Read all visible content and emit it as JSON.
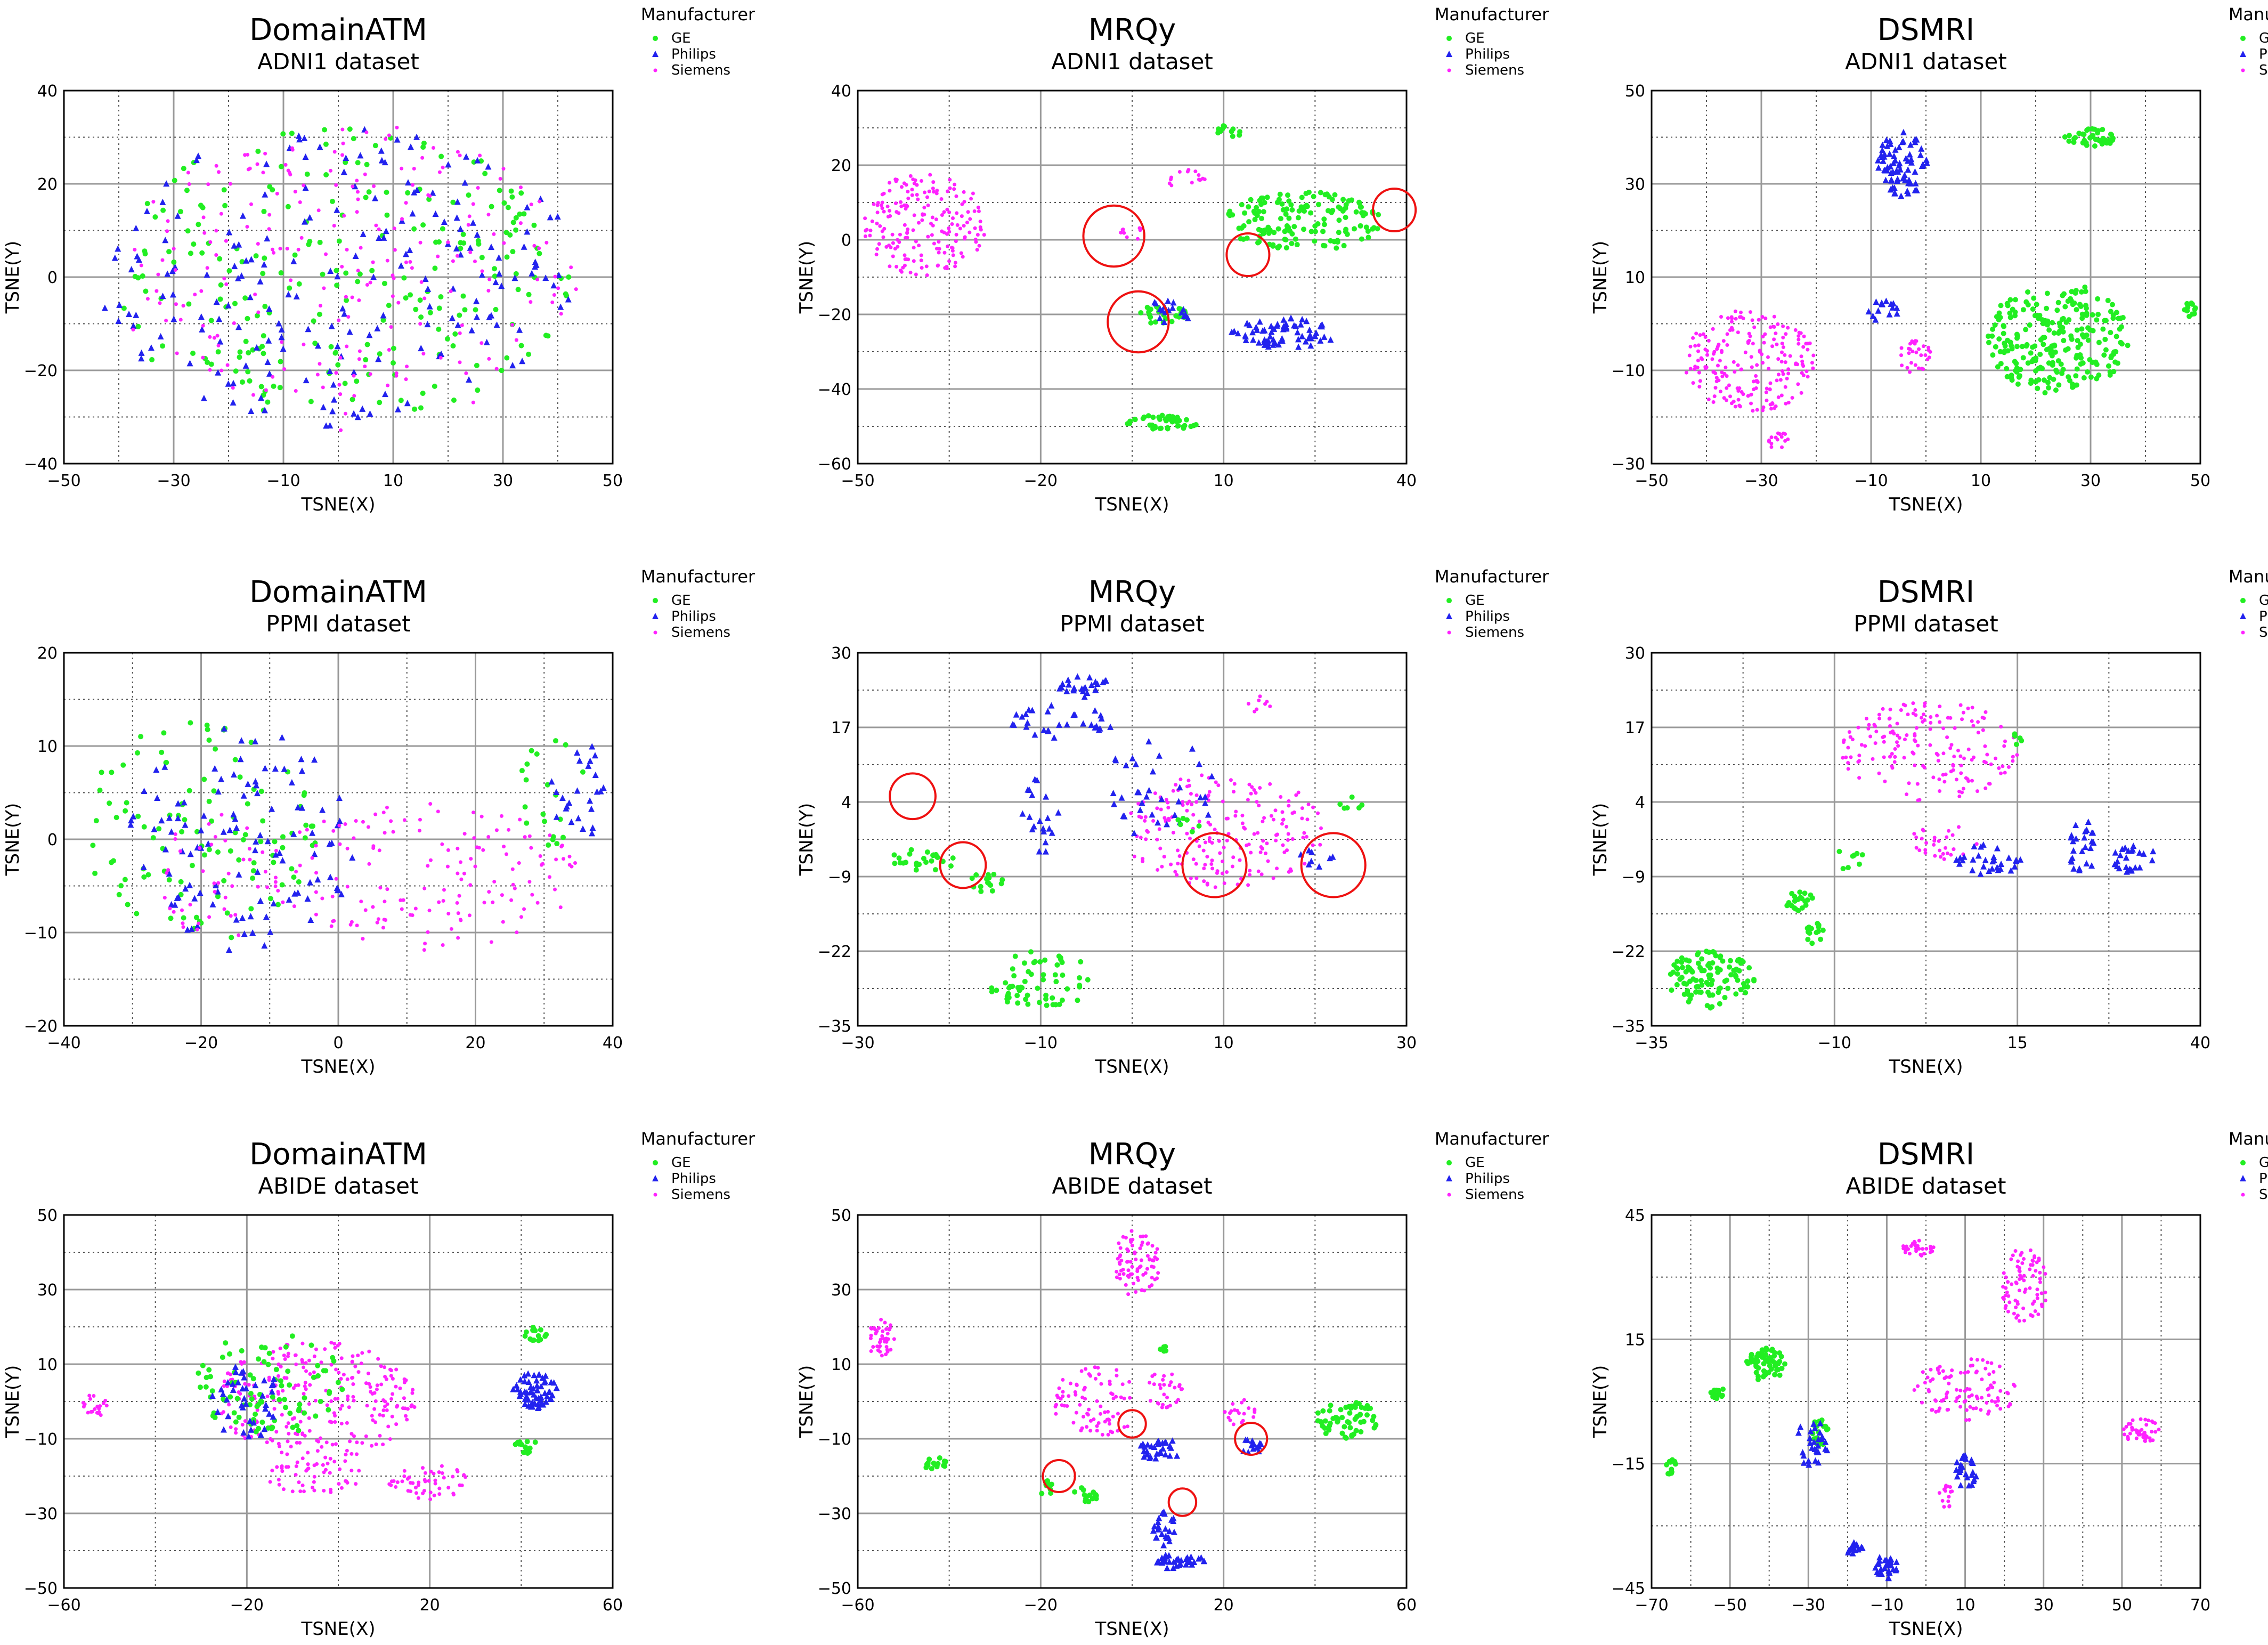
{
  "colors": {
    "GE": "#22ee22",
    "Philips": "#2222ee",
    "Siemens": "#ff22ff",
    "circle": "#ee1111",
    "grid": "#999999"
  },
  "chart_data": [
    {
      "type": "scatter",
      "title": "DomainATM",
      "subtitle": "ADNI1 dataset",
      "xlabel": "TSNE(X)",
      "ylabel": "TSNE(Y)",
      "xlim": [
        -50,
        50
      ],
      "ylim": [
        -40,
        40
      ],
      "xticks": [
        -50,
        -30,
        -10,
        10,
        30,
        50
      ],
      "yticks": [
        -40,
        -20,
        0,
        20,
        40
      ],
      "legend_title": "Manufacturer",
      "legend": [
        "GE",
        "Philips",
        "Siemens"
      ],
      "grid": true,
      "clusters": [
        {
          "series": "GE",
          "cx": 0,
          "cy": 0,
          "rx": 42,
          "ry": 32,
          "n": 230
        },
        {
          "series": "Philips",
          "cx": 0,
          "cy": 0,
          "rx": 44,
          "ry": 32,
          "n": 200
        },
        {
          "series": "Siemens",
          "cx": 2,
          "cy": 0,
          "rx": 42,
          "ry": 33,
          "n": 220
        }
      ],
      "circles": []
    },
    {
      "type": "scatter",
      "title": "MRQy",
      "subtitle": "ADNI1 dataset",
      "xlabel": "TSNE(X)",
      "ylabel": "TSNE(Y)",
      "xlim": [
        -50,
        40
      ],
      "ylim": [
        -60,
        40
      ],
      "xticks": [
        -50,
        -20,
        10,
        40
      ],
      "yticks": [
        -60,
        -40,
        -20,
        0,
        20,
        40
      ],
      "legend_title": "Manufacturer",
      "legend": [
        "GE",
        "Philips",
        "Siemens"
      ],
      "grid": true,
      "clusters": [
        {
          "series": "Siemens",
          "cx": -39,
          "cy": 4,
          "rx": 10,
          "ry": 14,
          "n": 190
        },
        {
          "series": "Siemens",
          "cx": 4,
          "cy": 16,
          "rx": 3,
          "ry": 3,
          "n": 15
        },
        {
          "series": "Siemens",
          "cx": -5,
          "cy": 2,
          "rx": 2,
          "ry": 2,
          "n": 10
        },
        {
          "series": "GE",
          "cx": 23,
          "cy": 5,
          "rx": 13,
          "ry": 8,
          "n": 150
        },
        {
          "series": "GE",
          "cx": 11,
          "cy": 29,
          "rx": 2,
          "ry": 2,
          "n": 12
        },
        {
          "series": "GE",
          "cx": 0,
          "cy": -49,
          "rx": 6,
          "ry": 2,
          "n": 45
        },
        {
          "series": "GE",
          "cx": 0,
          "cy": -20,
          "rx": 4,
          "ry": 3,
          "n": 25
        },
        {
          "series": "Philips",
          "cx": 20,
          "cy": -25,
          "rx": 9,
          "ry": 4,
          "n": 70
        },
        {
          "series": "Philips",
          "cx": 1,
          "cy": -20,
          "rx": 4,
          "ry": 4,
          "n": 18
        }
      ],
      "circles": [
        {
          "x": -8,
          "y": 1,
          "r": 5
        },
        {
          "x": -4,
          "y": -22,
          "r": 5
        },
        {
          "x": 14,
          "y": -4,
          "r": 3.5
        },
        {
          "x": 38,
          "y": 8,
          "r": 3.5
        }
      ]
    },
    {
      "type": "scatter",
      "title": "DSMRI",
      "subtitle": "ADNI1 dataset",
      "xlabel": "TSNE(X)",
      "ylabel": "TSNE(Y)",
      "xlim": [
        -50,
        50
      ],
      "ylim": [
        -30,
        50
      ],
      "xticks": [
        -50,
        -30,
        -10,
        10,
        30,
        50
      ],
      "yticks": [
        -30,
        -10,
        10,
        30,
        50
      ],
      "legend_title": "Manufacturer",
      "legend": [
        "GE",
        "Philips",
        "Siemens"
      ],
      "grid": true,
      "clusters": [
        {
          "series": "Siemens",
          "cx": -32,
          "cy": -8,
          "rx": 12,
          "ry": 11,
          "n": 210
        },
        {
          "series": "Siemens",
          "cx": -2,
          "cy": -7,
          "rx": 3,
          "ry": 4,
          "n": 30
        },
        {
          "series": "Siemens",
          "cx": -27,
          "cy": -25,
          "rx": 2,
          "ry": 2,
          "n": 15
        },
        {
          "series": "GE",
          "cx": 24,
          "cy": -3,
          "rx": 13,
          "ry": 12,
          "n": 250
        },
        {
          "series": "GE",
          "cx": 30,
          "cy": 40,
          "rx": 5,
          "ry": 2,
          "n": 40
        },
        {
          "series": "GE",
          "cx": 48,
          "cy": 3,
          "rx": 2,
          "ry": 1.5,
          "n": 12
        },
        {
          "series": "Philips",
          "cx": -4,
          "cy": 34,
          "rx": 5,
          "ry": 7,
          "n": 75
        },
        {
          "series": "Philips",
          "cx": -8,
          "cy": 3,
          "rx": 3,
          "ry": 3,
          "n": 15
        }
      ],
      "circles": []
    },
    {
      "type": "scatter",
      "title": "DomainATM",
      "subtitle": "PPMI dataset",
      "xlabel": "TSNE(X)",
      "ylabel": "TSNE(Y)",
      "xlim": [
        -40,
        40
      ],
      "ylim": [
        -20,
        20
      ],
      "xticks": [
        -40,
        -20,
        0,
        20,
        40
      ],
      "yticks": [
        -20,
        -10,
        0,
        10,
        20
      ],
      "legend_title": "Manufacturer",
      "legend": [
        "GE",
        "Philips",
        "Siemens"
      ],
      "grid": true,
      "clusters": [
        {
          "series": "GE",
          "cx": -20,
          "cy": 1,
          "rx": 17,
          "ry": 12,
          "n": 110
        },
        {
          "series": "GE",
          "cx": 31,
          "cy": 5,
          "rx": 5,
          "ry": 6,
          "n": 20
        },
        {
          "series": "Philips",
          "cx": -14,
          "cy": 0,
          "rx": 17,
          "ry": 12,
          "n": 110
        },
        {
          "series": "Philips",
          "cx": 35,
          "cy": 5,
          "rx": 4,
          "ry": 6,
          "n": 25
        },
        {
          "series": "Siemens",
          "cx": 12,
          "cy": -4,
          "rx": 23,
          "ry": 8,
          "n": 150
        },
        {
          "series": "Siemens",
          "cx": -18,
          "cy": -4,
          "rx": 8,
          "ry": 7,
          "n": 40
        }
      ],
      "circles": []
    },
    {
      "type": "scatter",
      "title": "MRQy",
      "subtitle": "PPMI dataset",
      "xlabel": "TSNE(X)",
      "ylabel": "TSNE(Y)",
      "xlim": [
        -30,
        30
      ],
      "ylim": [
        -35,
        30
      ],
      "xticks": [
        -30,
        -10,
        10,
        30
      ],
      "yticks": [
        -35,
        -22,
        -9,
        4,
        17,
        30
      ],
      "legend_title": "Manufacturer",
      "legend": [
        "GE",
        "Philips",
        "Siemens"
      ],
      "grid": true,
      "clusters": [
        {
          "series": "Siemens",
          "cx": 10,
          "cy": -1,
          "rx": 11,
          "ry": 10,
          "n": 200
        },
        {
          "series": "Siemens",
          "cx": 14,
          "cy": 21,
          "rx": 1.5,
          "ry": 1.5,
          "n": 8
        },
        {
          "series": "Philips",
          "cx": -5,
          "cy": 24,
          "rx": 3,
          "ry": 2,
          "n": 25
        },
        {
          "series": "Philips",
          "cx": -8,
          "cy": 18,
          "rx": 6,
          "ry": 3,
          "n": 30
        },
        {
          "series": "Philips",
          "cx": -10,
          "cy": 2,
          "rx": 2,
          "ry": 8,
          "n": 20
        },
        {
          "series": "Philips",
          "cx": 3,
          "cy": 6,
          "rx": 6,
          "ry": 10,
          "n": 35
        },
        {
          "series": "Philips",
          "cx": 20,
          "cy": -6,
          "rx": 2,
          "ry": 2,
          "n": 8
        },
        {
          "series": "GE",
          "cx": -23,
          "cy": -6,
          "rx": 4,
          "ry": 2,
          "n": 25
        },
        {
          "series": "GE",
          "cx": -16,
          "cy": -10,
          "rx": 2,
          "ry": 2,
          "n": 15
        },
        {
          "series": "GE",
          "cx": -10,
          "cy": -27,
          "rx": 6,
          "ry": 5,
          "n": 60
        },
        {
          "series": "GE",
          "cx": 6,
          "cy": 0,
          "rx": 1.5,
          "ry": 1.5,
          "n": 6
        },
        {
          "series": "GE",
          "cx": 24,
          "cy": 4,
          "rx": 1.5,
          "ry": 1.5,
          "n": 6
        }
      ],
      "circles": [
        {
          "x": -24,
          "y": 5,
          "r": 2.5
        },
        {
          "x": -18.5,
          "y": -7,
          "r": 2.5
        },
        {
          "x": 9,
          "y": -7,
          "r": 3.5
        },
        {
          "x": 22,
          "y": -7,
          "r": 3.5
        }
      ]
    },
    {
      "type": "scatter",
      "title": "DSMRI",
      "subtitle": "PPMI dataset",
      "xlabel": "TSNE(X)",
      "ylabel": "TSNE(Y)",
      "xlim": [
        -35,
        40
      ],
      "ylim": [
        -35,
        30
      ],
      "xticks": [
        -35,
        -10,
        15,
        40
      ],
      "yticks": [
        -35,
        -22,
        -9,
        4,
        17,
        30
      ],
      "legend_title": "Manufacturer",
      "legend": [
        "GE",
        "Philips",
        "Siemens"
      ],
      "grid": true,
      "clusters": [
        {
          "series": "Siemens",
          "cx": 3,
          "cy": 13,
          "rx": 12,
          "ry": 9,
          "n": 170
        },
        {
          "series": "Siemens",
          "cx": 5,
          "cy": -3,
          "rx": 5,
          "ry": 3,
          "n": 30
        },
        {
          "series": "GE",
          "cx": -27,
          "cy": -27,
          "rx": 6,
          "ry": 5,
          "n": 110
        },
        {
          "series": "GE",
          "cx": -15,
          "cy": -13,
          "rx": 2,
          "ry": 2,
          "n": 20
        },
        {
          "series": "GE",
          "cx": -13,
          "cy": -19,
          "rx": 2,
          "ry": 2,
          "n": 15
        },
        {
          "series": "GE",
          "cx": -8,
          "cy": -6,
          "rx": 2,
          "ry": 2,
          "n": 8
        },
        {
          "series": "GE",
          "cx": 15,
          "cy": 15,
          "rx": 0.8,
          "ry": 1,
          "n": 5
        },
        {
          "series": "Philips",
          "cx": 11,
          "cy": -6,
          "rx": 5,
          "ry": 3,
          "n": 30
        },
        {
          "series": "Philips",
          "cx": 24,
          "cy": -4,
          "rx": 2,
          "ry": 5,
          "n": 25
        },
        {
          "series": "Philips",
          "cx": 31,
          "cy": -6,
          "rx": 3,
          "ry": 3,
          "n": 25
        }
      ],
      "circles": []
    },
    {
      "type": "scatter",
      "title": "DomainATM",
      "subtitle": "ABIDE dataset",
      "xlabel": "TSNE(X)",
      "ylabel": "TSNE(Y)",
      "xlim": [
        -60,
        60
      ],
      "ylim": [
        -50,
        50
      ],
      "xticks": [
        -60,
        -20,
        20,
        60
      ],
      "yticks": [
        -50,
        -30,
        -10,
        10,
        30,
        50
      ],
      "legend_title": "Manufacturer",
      "legend": [
        "GE",
        "Philips",
        "Siemens"
      ],
      "grid": true,
      "clusters": [
        {
          "series": "Siemens",
          "cx": -5,
          "cy": 0,
          "rx": 22,
          "ry": 16,
          "n": 260
        },
        {
          "series": "Siemens",
          "cx": 20,
          "cy": -22,
          "rx": 9,
          "ry": 5,
          "n": 50
        },
        {
          "series": "Siemens",
          "cx": -5,
          "cy": -20,
          "rx": 11,
          "ry": 5,
          "n": 50
        },
        {
          "series": "Siemens",
          "cx": -53,
          "cy": -1,
          "rx": 3,
          "ry": 3,
          "n": 20
        },
        {
          "series": "GE",
          "cx": -15,
          "cy": 5,
          "rx": 16,
          "ry": 14,
          "n": 90
        },
        {
          "series": "GE",
          "cx": 43,
          "cy": 18,
          "rx": 2.5,
          "ry": 2,
          "n": 15
        },
        {
          "series": "GE",
          "cx": 41,
          "cy": -12,
          "rx": 2.5,
          "ry": 2,
          "n": 15
        },
        {
          "series": "Philips",
          "cx": 43,
          "cy": 3,
          "rx": 5,
          "ry": 5,
          "n": 60
        },
        {
          "series": "Philips",
          "cx": -20,
          "cy": 0,
          "rx": 8,
          "ry": 10,
          "n": 40
        }
      ],
      "circles": []
    },
    {
      "type": "scatter",
      "title": "MRQy",
      "subtitle": "ABIDE dataset",
      "xlabel": "TSNE(X)",
      "ylabel": "TSNE(Y)",
      "xlim": [
        -60,
        60
      ],
      "ylim": [
        -50,
        50
      ],
      "xticks": [
        -60,
        -20,
        20,
        60
      ],
      "yticks": [
        -50,
        -30,
        -10,
        10,
        30,
        50
      ],
      "legend_title": "Manufacturer",
      "legend": [
        "GE",
        "Philips",
        "Siemens"
      ],
      "grid": true,
      "clusters": [
        {
          "series": "Siemens",
          "cx": -55,
          "cy": 17,
          "rx": 3,
          "ry": 5,
          "n": 40
        },
        {
          "series": "Siemens",
          "cx": 1,
          "cy": 37,
          "rx": 5,
          "ry": 9,
          "n": 80
        },
        {
          "series": "Siemens",
          "cx": -8,
          "cy": 0,
          "rx": 10,
          "ry": 10,
          "n": 80
        },
        {
          "series": "Siemens",
          "cx": 7,
          "cy": 3,
          "rx": 4,
          "ry": 5,
          "n": 30
        },
        {
          "series": "Siemens",
          "cx": 24,
          "cy": -3,
          "rx": 4,
          "ry": 4,
          "n": 20
        },
        {
          "series": "GE",
          "cx": -43,
          "cy": -17,
          "rx": 2.5,
          "ry": 2,
          "n": 15
        },
        {
          "series": "GE",
          "cx": -19,
          "cy": -23,
          "rx": 2,
          "ry": 2,
          "n": 10
        },
        {
          "series": "GE",
          "cx": -10,
          "cy": -25,
          "rx": 3,
          "ry": 2,
          "n": 15
        },
        {
          "series": "GE",
          "cx": 47,
          "cy": -5,
          "rx": 7,
          "ry": 5,
          "n": 60
        },
        {
          "series": "GE",
          "cx": 7,
          "cy": 14,
          "rx": 1.5,
          "ry": 1,
          "n": 6
        },
        {
          "series": "Philips",
          "cx": 6,
          "cy": -13,
          "rx": 5,
          "ry": 3,
          "n": 30
        },
        {
          "series": "Philips",
          "cx": 26,
          "cy": -12,
          "rx": 2.5,
          "ry": 2,
          "n": 15
        },
        {
          "series": "Philips",
          "cx": 7,
          "cy": -34,
          "rx": 2.5,
          "ry": 5,
          "n": 25
        },
        {
          "series": "Philips",
          "cx": 10,
          "cy": -43,
          "rx": 6,
          "ry": 2,
          "n": 35
        }
      ],
      "circles": [
        {
          "x": -16,
          "y": -20,
          "r": 3.5
        },
        {
          "x": 0,
          "y": -6,
          "r": 3
        },
        {
          "x": 26,
          "y": -10,
          "r": 3.5
        },
        {
          "x": 11,
          "y": -27,
          "r": 3
        }
      ]
    },
    {
      "type": "scatter",
      "title": "DSMRI",
      "subtitle": "ABIDE dataset",
      "xlabel": "TSNE(X)",
      "ylabel": "TSNE(Y)",
      "xlim": [
        -70,
        70
      ],
      "ylim": [
        -45,
        45
      ],
      "xticks": [
        -70,
        -50,
        -30,
        -10,
        10,
        30,
        50,
        70
      ],
      "yticks": [
        -45,
        -15,
        15,
        45
      ],
      "legend_title": "Manufacturer",
      "legend": [
        "GE",
        "Philips",
        "Siemens"
      ],
      "grid": true,
      "clusters": [
        {
          "series": "Siemens",
          "cx": 10,
          "cy": 3,
          "rx": 13,
          "ry": 8,
          "n": 100
        },
        {
          "series": "Siemens",
          "cx": 25,
          "cy": 28,
          "rx": 6,
          "ry": 9,
          "n": 80
        },
        {
          "series": "Siemens",
          "cx": 55,
          "cy": -7,
          "rx": 5,
          "ry": 3,
          "n": 45
        },
        {
          "series": "Siemens",
          "cx": -2,
          "cy": 37,
          "rx": 4,
          "ry": 2,
          "n": 30
        },
        {
          "series": "Siemens",
          "cx": 5,
          "cy": -23,
          "rx": 2,
          "ry": 3,
          "n": 15
        },
        {
          "series": "GE",
          "cx": -41,
          "cy": 9,
          "rx": 5,
          "ry": 4,
          "n": 60
        },
        {
          "series": "GE",
          "cx": -53,
          "cy": 2,
          "rx": 2,
          "ry": 1.5,
          "n": 15
        },
        {
          "series": "GE",
          "cx": -65,
          "cy": -16,
          "rx": 1.5,
          "ry": 2,
          "n": 15
        },
        {
          "series": "GE",
          "cx": -27,
          "cy": -7,
          "rx": 2,
          "ry": 4,
          "n": 20
        },
        {
          "series": "Philips",
          "cx": -29,
          "cy": -10,
          "rx": 4,
          "ry": 6,
          "n": 30
        },
        {
          "series": "Philips",
          "cx": -18,
          "cy": -36,
          "rx": 2,
          "ry": 2,
          "n": 15
        },
        {
          "series": "Philips",
          "cx": -10,
          "cy": -40,
          "rx": 3,
          "ry": 3,
          "n": 30
        },
        {
          "series": "Philips",
          "cx": 10,
          "cy": -17,
          "rx": 3,
          "ry": 4,
          "n": 25
        }
      ],
      "circles": []
    }
  ]
}
